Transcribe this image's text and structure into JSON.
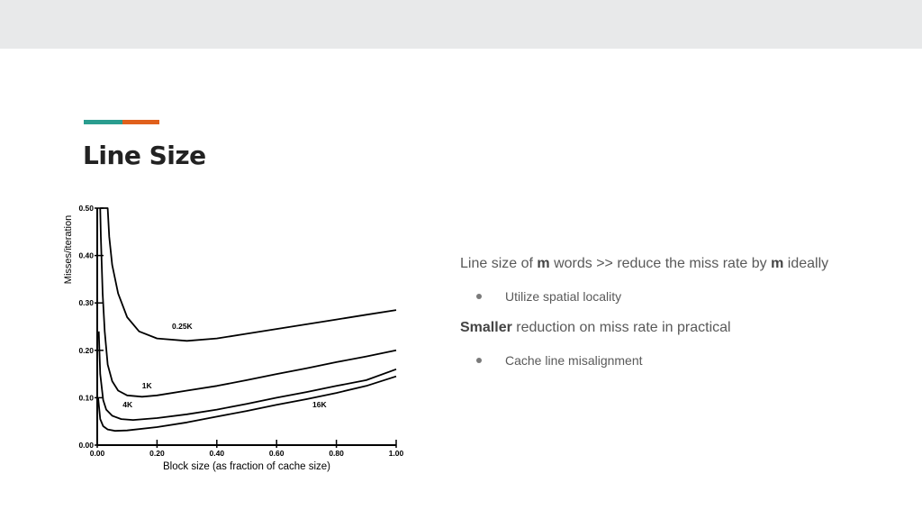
{
  "slide": {
    "title": "Line Size",
    "accent_colors": [
      "#2a9d8f",
      "#e0601c"
    ]
  },
  "text": {
    "p1": {
      "prefix": "Line size of ",
      "m1": "m",
      "mid": " words  >> reduce the miss rate by ",
      "m2": "m",
      "suffix": " ideally"
    },
    "b1": "Utilize spatial locality",
    "p2": {
      "bold": "Smaller",
      "rest": " reduction on miss rate in practical"
    },
    "b2": "Cache line misalignment"
  },
  "chart_data": {
    "type": "line",
    "xlabel": "Block size (as fraction of cache size)",
    "ylabel": "Misses/iteration",
    "xlim": [
      0,
      1
    ],
    "ylim": [
      0,
      0.5
    ],
    "xticks": [
      "0.00",
      "0.20",
      "0.40",
      "0.60",
      "0.80",
      "1.00"
    ],
    "yticks": [
      "0.00",
      "0.10",
      "0.20",
      "0.30",
      "0.40",
      "0.50"
    ],
    "series": [
      {
        "name": "0.25K",
        "points": [
          [
            0.01,
            0.5
          ],
          [
            0.02,
            0.5
          ],
          [
            0.035,
            0.5
          ],
          [
            0.04,
            0.44
          ],
          [
            0.05,
            0.38
          ],
          [
            0.07,
            0.32
          ],
          [
            0.1,
            0.27
          ],
          [
            0.14,
            0.24
          ],
          [
            0.2,
            0.225
          ],
          [
            0.3,
            0.22
          ],
          [
            0.4,
            0.225
          ],
          [
            0.5,
            0.235
          ],
          [
            0.6,
            0.245
          ],
          [
            0.7,
            0.255
          ],
          [
            0.8,
            0.265
          ],
          [
            0.9,
            0.275
          ],
          [
            1.0,
            0.285
          ]
        ],
        "label_at": [
          0.25,
          0.245
        ]
      },
      {
        "name": "1K",
        "points": [
          [
            0.01,
            0.5
          ],
          [
            0.012,
            0.44
          ],
          [
            0.018,
            0.32
          ],
          [
            0.025,
            0.24
          ],
          [
            0.035,
            0.17
          ],
          [
            0.05,
            0.135
          ],
          [
            0.07,
            0.115
          ],
          [
            0.1,
            0.105
          ],
          [
            0.15,
            0.102
          ],
          [
            0.2,
            0.105
          ],
          [
            0.3,
            0.115
          ],
          [
            0.4,
            0.125
          ],
          [
            0.5,
            0.137
          ],
          [
            0.6,
            0.15
          ],
          [
            0.7,
            0.162
          ],
          [
            0.8,
            0.175
          ],
          [
            0.9,
            0.187
          ],
          [
            1.0,
            0.2
          ]
        ],
        "label_at": [
          0.15,
          0.12
        ]
      },
      {
        "name": "4K",
        "points": [
          [
            0.005,
            0.24
          ],
          [
            0.01,
            0.15
          ],
          [
            0.02,
            0.095
          ],
          [
            0.03,
            0.075
          ],
          [
            0.05,
            0.062
          ],
          [
            0.08,
            0.055
          ],
          [
            0.12,
            0.053
          ],
          [
            0.2,
            0.057
          ],
          [
            0.3,
            0.065
          ],
          [
            0.4,
            0.075
          ],
          [
            0.5,
            0.087
          ],
          [
            0.6,
            0.1
          ],
          [
            0.7,
            0.112
          ],
          [
            0.8,
            0.125
          ],
          [
            0.9,
            0.137
          ],
          [
            1.0,
            0.16
          ]
        ],
        "label_at": [
          0.085,
          0.08
        ]
      },
      {
        "name": "16K",
        "points": [
          [
            0.003,
            0.1
          ],
          [
            0.01,
            0.055
          ],
          [
            0.02,
            0.04
          ],
          [
            0.035,
            0.033
          ],
          [
            0.06,
            0.03
          ],
          [
            0.1,
            0.031
          ],
          [
            0.2,
            0.038
          ],
          [
            0.3,
            0.048
          ],
          [
            0.4,
            0.06
          ],
          [
            0.5,
            0.072
          ],
          [
            0.6,
            0.085
          ],
          [
            0.7,
            0.097
          ],
          [
            0.8,
            0.11
          ],
          [
            0.9,
            0.125
          ],
          [
            1.0,
            0.145
          ]
        ],
        "label_at": [
          0.72,
          0.08
        ]
      }
    ]
  }
}
